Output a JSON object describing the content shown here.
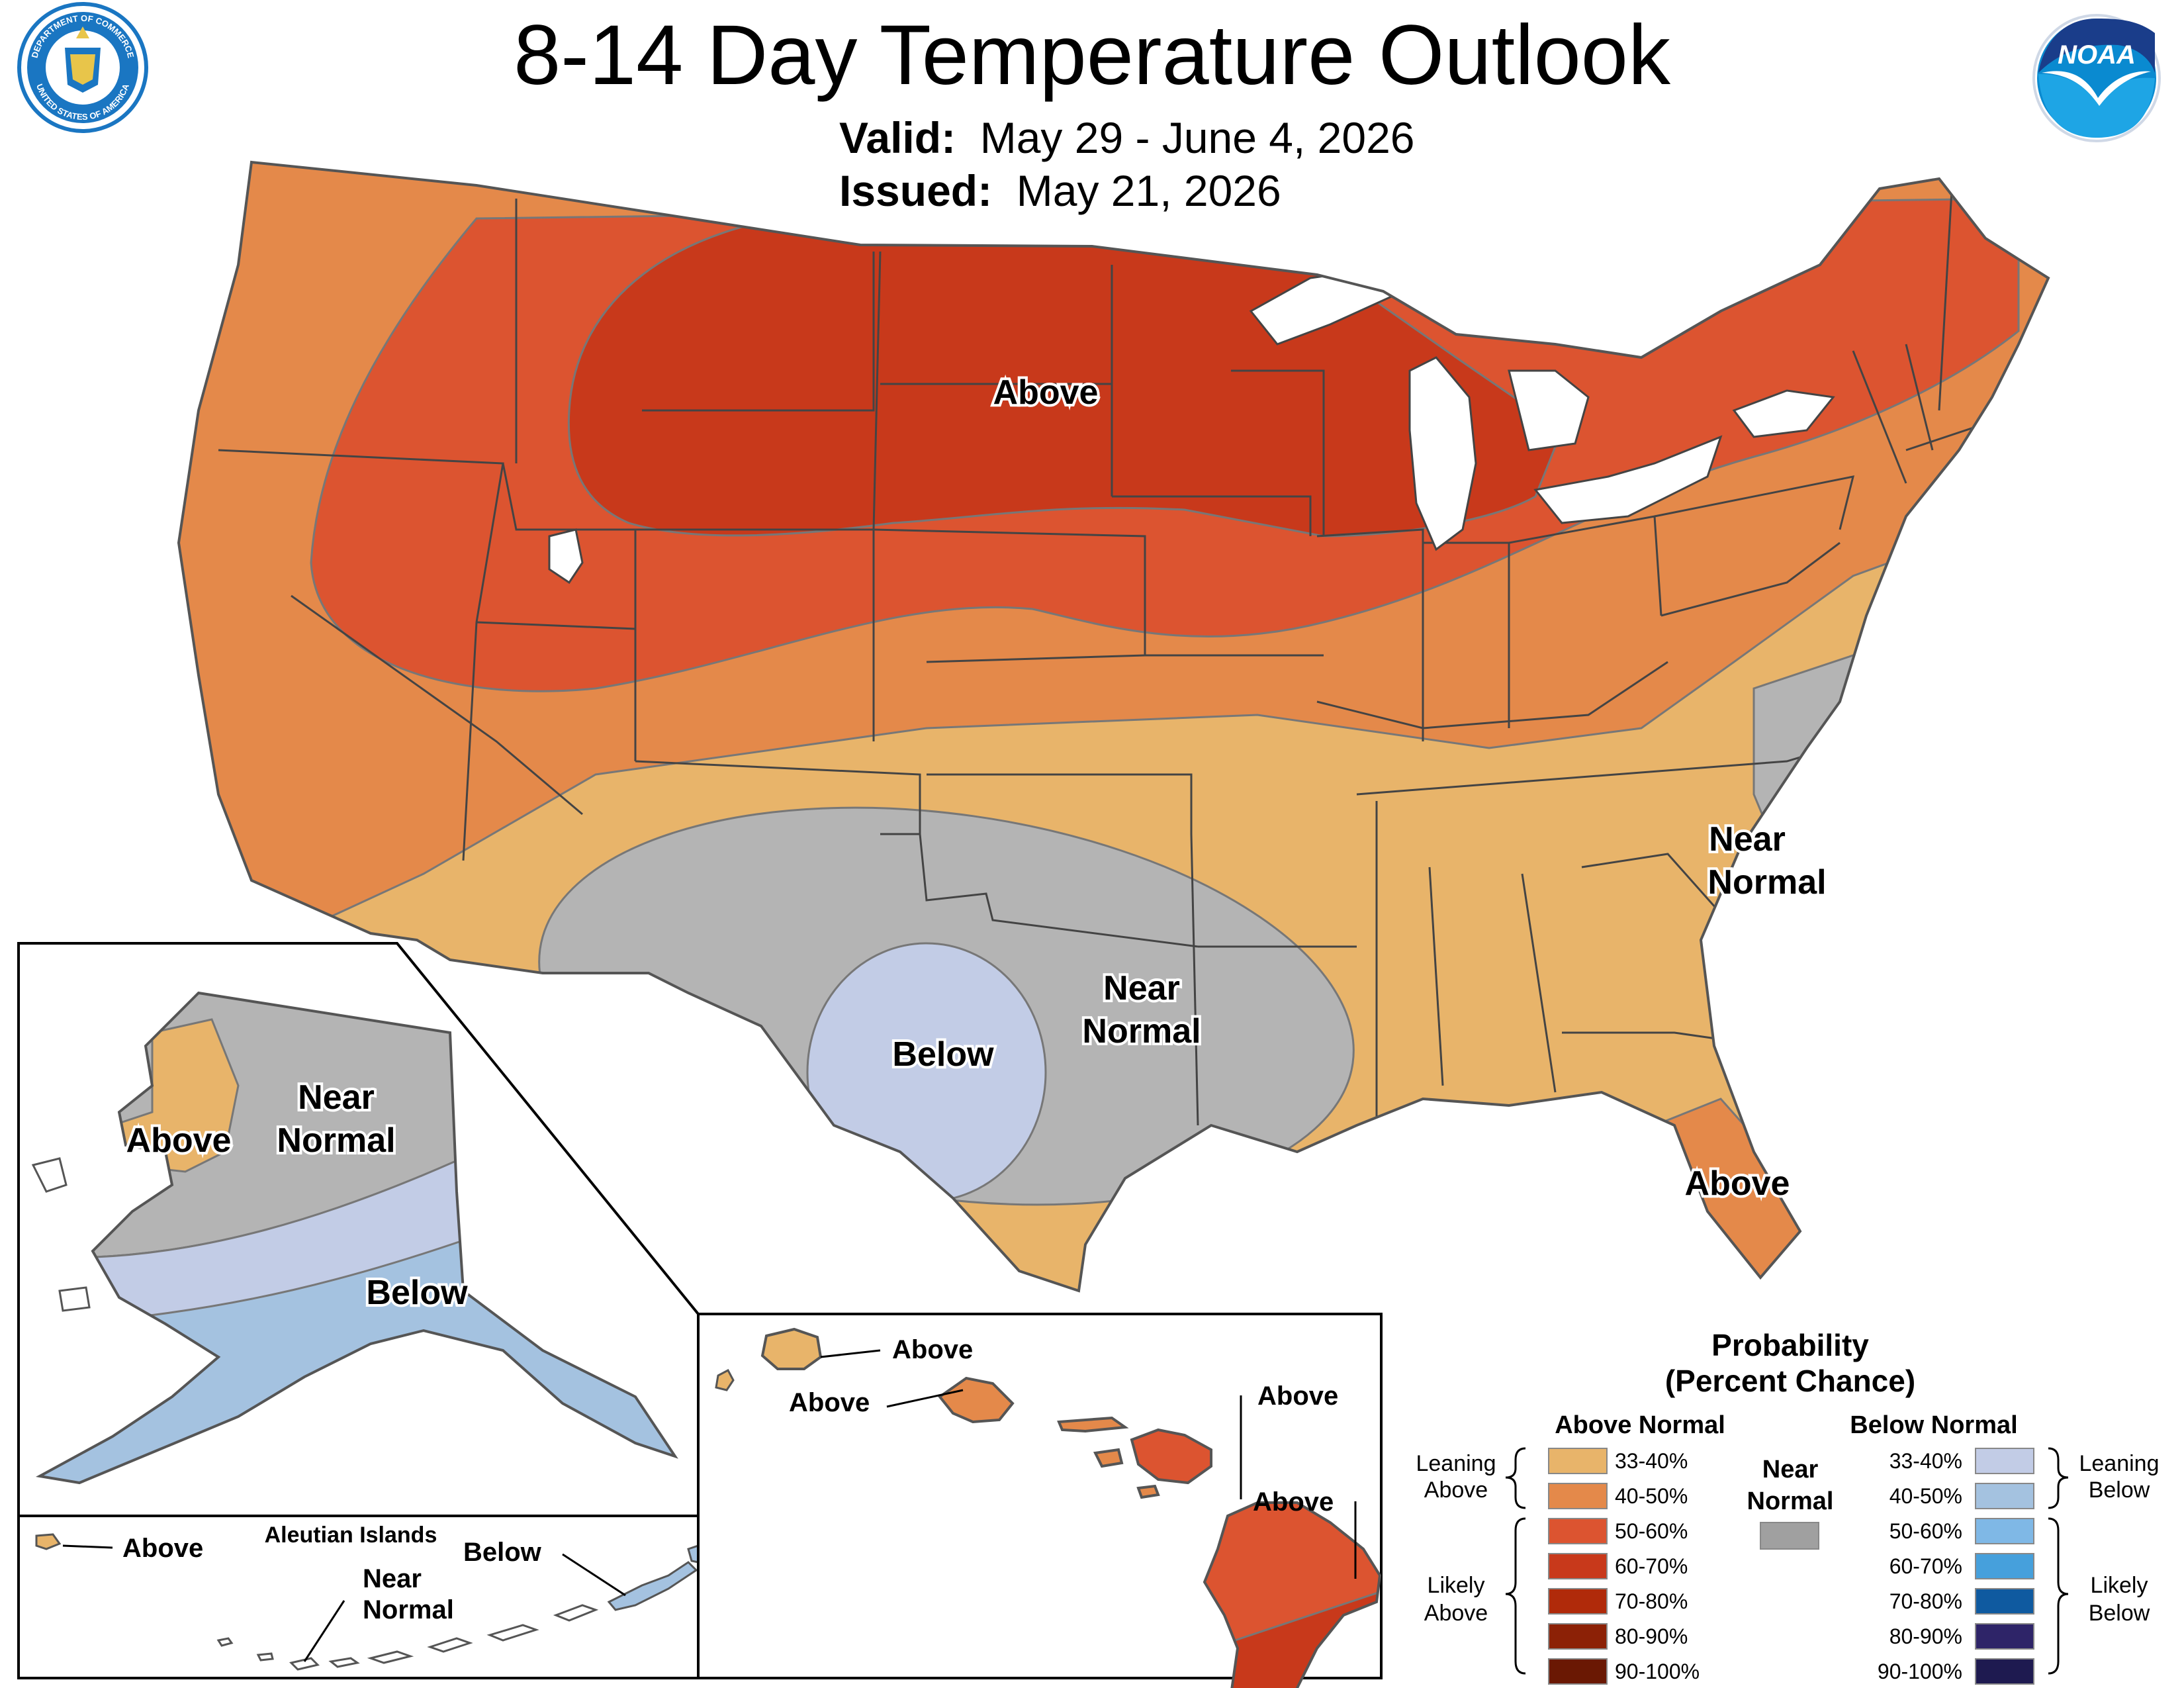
{
  "header": {
    "title": "8-14 Day Temperature Outlook",
    "valid_label": "Valid:",
    "valid_value": "May 29 - June 4, 2026",
    "issued_label": "Issued:",
    "issued_value": "May 21, 2026"
  },
  "logos": {
    "left": {
      "icon": "department-of-commerce-seal",
      "text_top": "DEPARTMENT OF COMMERCE",
      "text_bottom": "UNITED STATES OF AMERICA"
    },
    "right": {
      "icon": "noaa-logo",
      "text": "NOAA"
    }
  },
  "map_labels": {
    "conus_above_north": "Above",
    "conus_near_normal_east_1": "Near",
    "conus_near_normal_east_2": "Normal",
    "conus_near_normal_south_1": "Near",
    "conus_near_normal_south_2": "Normal",
    "conus_below": "Below",
    "conus_above_florida": "Above",
    "alaska_above": "Above",
    "alaska_near_1": "Near",
    "alaska_near_2": "Normal",
    "alaska_below": "Below",
    "aleutian_title": "Aleutian Islands",
    "aleutian_above": "Above",
    "aleutian_near_1": "Near",
    "aleutian_near_2": "Normal",
    "aleutian_below": "Below",
    "hawaii_above_1": "Above",
    "hawaii_above_2": "Above",
    "hawaii_above_3": "Above",
    "hawaii_above_4": "Above"
  },
  "legend": {
    "title_1": "Probability",
    "title_2": "(Percent Chance)",
    "above_header": "Above Normal",
    "below_header": "Below Normal",
    "near_1": "Near",
    "near_2": "Normal",
    "near_color": "#a0a0a0",
    "leaning_above_1": "Leaning",
    "leaning_above_2": "Above",
    "likely_above_1": "Likely",
    "likely_above_2": "Above",
    "leaning_below_1": "Leaning",
    "leaning_below_2": "Below",
    "likely_below_1": "Likely",
    "likely_below_2": "Below",
    "above": [
      {
        "label": "33-40%",
        "color": "#e8b46a"
      },
      {
        "label": "40-50%",
        "color": "#e4894a"
      },
      {
        "label": "50-60%",
        "color": "#dc5430"
      },
      {
        "label": "60-70%",
        "color": "#c8391b"
      },
      {
        "label": "70-80%",
        "color": "#b02a0a"
      },
      {
        "label": "80-90%",
        "color": "#8c2106"
      },
      {
        "label": "90-100%",
        "color": "#6a1803"
      }
    ],
    "below": [
      {
        "label": "33-40%",
        "color": "#c2cce6"
      },
      {
        "label": "40-50%",
        "color": "#a4c2e0"
      },
      {
        "label": "50-60%",
        "color": "#7fb8e6"
      },
      {
        "label": "60-70%",
        "color": "#46a0dc"
      },
      {
        "label": "70-80%",
        "color": "#0f5aa0"
      },
      {
        "label": "80-90%",
        "color": "#2e2468"
      },
      {
        "label": "90-100%",
        "color": "#1e1a50"
      }
    ]
  }
}
